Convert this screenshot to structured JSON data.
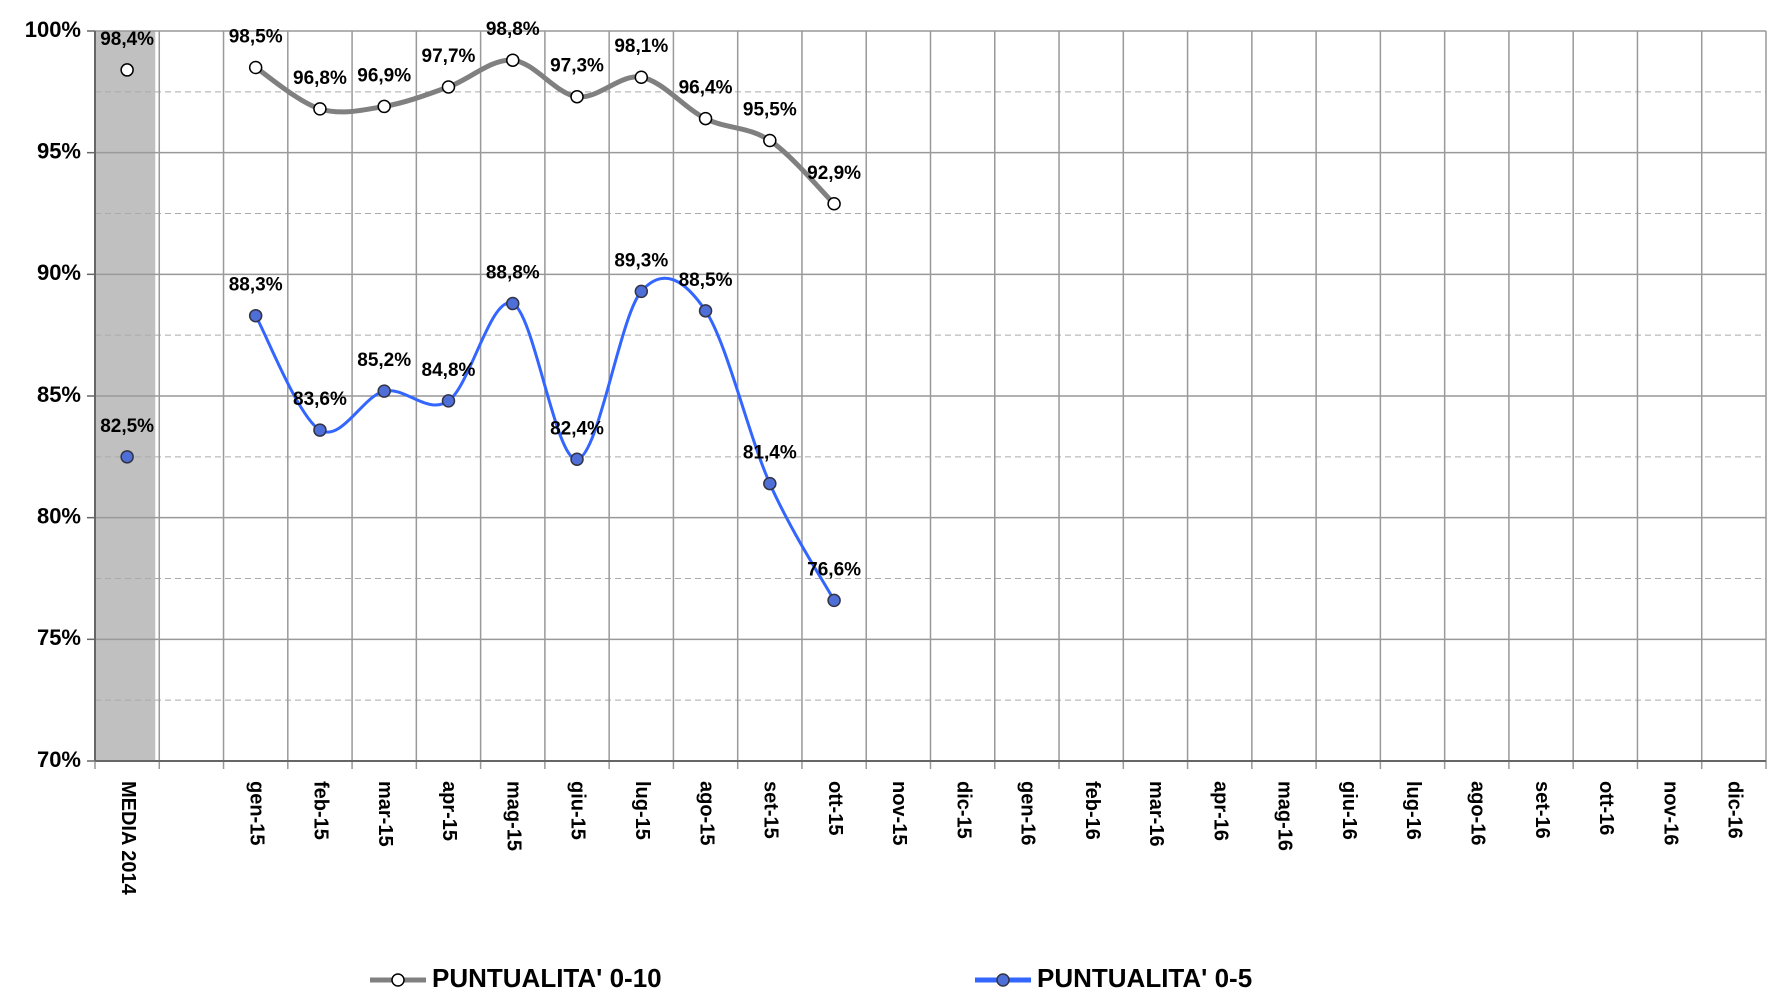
{
  "chart_data": {
    "type": "line",
    "categories": [
      "MEDIA 2014",
      null,
      "gen-15",
      "feb-15",
      "mar-15",
      "apr-15",
      "mag-15",
      "giu-15",
      "lug-15",
      "ago-15",
      "set-15",
      "ott-15",
      "nov-15",
      "dic-15",
      "gen-16",
      "feb-16",
      "mar-16",
      "apr-16",
      "mag-16",
      "giu-16",
      "lug-16",
      "ago-16",
      "set-16",
      "ott-16",
      "nov-16",
      "dic-16"
    ],
    "series": [
      {
        "name": "PUNTUALITA' 0-10",
        "color": "#808080",
        "marker_fill": "#ffffff",
        "values": [
          98.4,
          null,
          98.5,
          96.8,
          96.9,
          97.7,
          98.8,
          97.3,
          98.1,
          96.4,
          95.5,
          92.9,
          null,
          null,
          null,
          null,
          null,
          null,
          null,
          null,
          null,
          null,
          null,
          null,
          null,
          null
        ],
        "value_labels": [
          "98,4%",
          null,
          "98,5%",
          "96,8%",
          "96,9%",
          "97,7%",
          "98,8%",
          "97,3%",
          "98,1%",
          "96,4%",
          "95,5%",
          "92,9%",
          null,
          null,
          null,
          null,
          null,
          null,
          null,
          null,
          null,
          null,
          null,
          null,
          null,
          null
        ]
      },
      {
        "name": "PUNTUALITA' 0-5",
        "color": "#3366ff",
        "marker_fill": "#4f6fd8",
        "values": [
          82.5,
          null,
          88.3,
          83.6,
          85.2,
          84.8,
          88.8,
          82.4,
          89.3,
          88.5,
          81.4,
          76.6,
          null,
          null,
          null,
          null,
          null,
          null,
          null,
          null,
          null,
          null,
          null,
          null,
          null,
          null
        ],
        "value_labels": [
          "82,5%",
          null,
          "88,3%",
          "83,6%",
          "85,2%",
          "84,8%",
          "88,8%",
          "82,4%",
          "89,3%",
          "88,5%",
          "81,4%",
          "76,6%",
          null,
          null,
          null,
          null,
          null,
          null,
          null,
          null,
          null,
          null,
          null,
          null,
          null,
          null
        ]
      }
    ],
    "ylim": [
      70,
      100
    ],
    "yticks": [
      {
        "value": 70,
        "label": "70%"
      },
      {
        "value": 75,
        "label": "75%"
      },
      {
        "value": 80,
        "label": "80%"
      },
      {
        "value": 85,
        "label": "85%"
      },
      {
        "value": 90,
        "label": "90%"
      },
      {
        "value": 95,
        "label": "95%"
      },
      {
        "value": 100,
        "label": "100%"
      }
    ],
    "minor_yticks": [
      72.5,
      77.5,
      82.5,
      87.5,
      92.5,
      97.5
    ],
    "grid": true,
    "legend": "bottom"
  }
}
